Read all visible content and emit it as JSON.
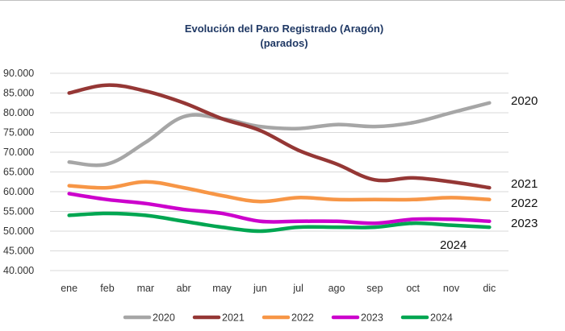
{
  "chart_data": {
    "type": "line",
    "title": "Evolución del Paro Registrado (Aragón)",
    "subtitle": "(parados)",
    "categories": [
      "ene",
      "feb",
      "mar",
      "abr",
      "may",
      "jun",
      "jul",
      "ago",
      "sep",
      "oct",
      "nov",
      "dic"
    ],
    "y_ticks": [
      "40.000",
      "45.000",
      "50.000",
      "55.000",
      "60.000",
      "65.000",
      "70.000",
      "75.000",
      "80.000",
      "85.000",
      "90.000"
    ],
    "ylim": [
      40000,
      90000
    ],
    "grid": true,
    "legend_position": "bottom",
    "series": [
      {
        "name": "2020",
        "color": "#a6a6a6",
        "end_label": "2020",
        "values": [
          67500,
          67000,
          72500,
          79000,
          78500,
          76500,
          76000,
          77000,
          76500,
          77500,
          80000,
          82500
        ]
      },
      {
        "name": "2021",
        "color": "#953735",
        "end_label": "2021",
        "values": [
          85000,
          87000,
          85500,
          82500,
          78500,
          75500,
          70500,
          67000,
          63000,
          63500,
          62500,
          61000
        ]
      },
      {
        "name": "2022",
        "color": "#f79646",
        "end_label": "2022",
        "values": [
          61500,
          61000,
          62500,
          61000,
          59000,
          57500,
          58500,
          58000,
          58000,
          58000,
          58500,
          58000
        ]
      },
      {
        "name": "2023",
        "color": "#cc00cc",
        "end_label": "2023",
        "values": [
          59500,
          58000,
          57000,
          55500,
          54500,
          52500,
          52500,
          52500,
          52000,
          53000,
          53000,
          52500
        ]
      },
      {
        "name": "2024",
        "color": "#00a651",
        "end_label": "2024",
        "values": [
          54000,
          54500,
          54000,
          52500,
          51000,
          50000,
          51000,
          51000,
          51000,
          52000,
          51500,
          51000
        ]
      }
    ]
  }
}
